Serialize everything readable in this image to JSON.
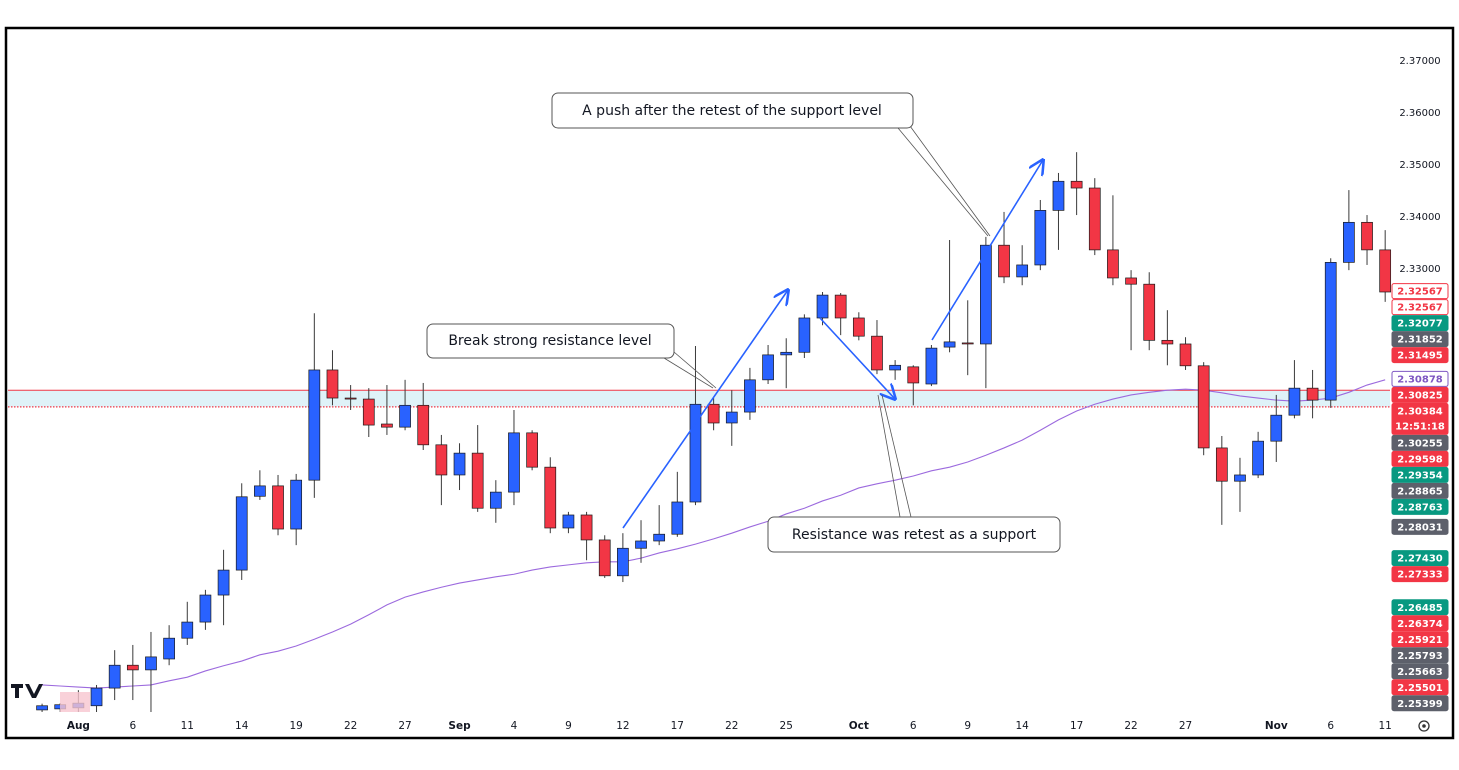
{
  "chart_data": {
    "type": "candlestick",
    "categories": [
      null,
      null,
      "Aug",
      null,
      null,
      "6",
      null,
      null,
      "11",
      null,
      null,
      "14",
      null,
      null,
      "19",
      null,
      null,
      "22",
      null,
      null,
      "27",
      null,
      null,
      "Sep",
      null,
      null,
      "4",
      null,
      null,
      "9",
      null,
      null,
      "12",
      null,
      null,
      "17",
      null,
      null,
      "22",
      null,
      null,
      "25",
      null,
      null,
      null,
      "Oct",
      null,
      null,
      "6",
      null,
      null,
      "9",
      null,
      null,
      "14",
      null,
      null,
      "17",
      null,
      null,
      "22",
      null,
      null,
      "27",
      null,
      null,
      null,
      null,
      "Nov",
      null,
      null,
      "6",
      null,
      null,
      "11"
    ],
    "open": [
      2.2452,
      2.2454,
      2.2456,
      2.246,
      2.2494,
      2.2538,
      2.2529,
      2.255,
      2.259,
      2.2621,
      2.2673,
      2.2721,
      2.2863,
      2.2883,
      2.28,
      2.2894,
      2.3106,
      2.3052,
      2.305,
      2.3002,
      2.2996,
      2.3038,
      2.2962,
      2.2904,
      2.2946,
      2.284,
      2.2871,
      2.2985,
      2.2919,
      2.2802,
      2.2827,
      2.2779,
      2.271,
      2.2763,
      2.2777,
      2.279,
      2.2852,
      2.304,
      2.3004,
      2.3025,
      2.3087,
      2.3135,
      2.314,
      2.3206,
      2.325,
      2.3206,
      2.3171,
      2.3106,
      2.3112,
      2.3079,
      2.315,
      2.3158,
      2.3156,
      2.3346,
      2.3285,
      2.3308,
      2.3413,
      2.3469,
      2.3456,
      2.3337,
      2.3283,
      2.3271,
      2.3163,
      2.3156,
      2.3114,
      2.2956,
      2.2892,
      2.2904,
      2.2969,
      2.3019,
      2.3071,
      2.3048,
      2.3313,
      2.339,
      2.3337
    ],
    "high": [
      2.2464,
      2.2465,
      2.249,
      2.25,
      2.2567,
      2.2577,
      2.2602,
      2.2615,
      2.266,
      2.2683,
      2.276,
      2.2888,
      2.2913,
      2.2904,
      2.2906,
      2.3215,
      2.3144,
      2.3077,
      2.3071,
      2.3077,
      2.3087,
      2.3081,
      2.2981,
      2.2965,
      2.3,
      2.2894,
      2.3029,
      2.299,
      2.2938,
      2.2833,
      2.2833,
      2.2788,
      2.2792,
      2.2817,
      2.2846,
      2.291,
      2.3152,
      2.3052,
      2.3067,
      2.311,
      2.3154,
      2.3167,
      2.3213,
      2.3256,
      2.3254,
      2.3217,
      2.3202,
      2.3125,
      2.3115,
      2.3154,
      2.3356,
      2.324,
      2.3362,
      2.341,
      2.3346,
      2.3433,
      2.3485,
      2.3525,
      2.3475,
      2.3442,
      2.3298,
      2.3294,
      2.3221,
      2.3169,
      2.3121,
      2.2979,
      2.2937,
      2.2987,
      2.3058,
      2.3125,
      2.3106,
      2.3321,
      2.3452,
      2.3404,
      2.3375
    ],
    "low": [
      2.2448,
      2.2448,
      2.2448,
      2.2448,
      2.2471,
      2.2471,
      2.2448,
      2.2538,
      2.2577,
      2.2606,
      2.2615,
      2.2702,
      2.2856,
      2.2788,
      2.2769,
      2.286,
      2.3038,
      2.3029,
      2.2977,
      2.2981,
      2.299,
      2.2952,
      2.2846,
      2.2875,
      2.2833,
      2.2812,
      2.2846,
      2.2913,
      2.2792,
      2.2792,
      2.274,
      2.2706,
      2.2698,
      2.2735,
      2.2769,
      2.2785,
      2.2846,
      2.299,
      2.296,
      2.301,
      2.3079,
      2.3071,
      2.3129,
      2.3192,
      2.3173,
      2.3163,
      2.3098,
      2.3087,
      2.3038,
      2.3075,
      2.314,
      2.3096,
      2.3071,
      2.3273,
      2.3269,
      2.3298,
      2.3337,
      2.3404,
      2.3327,
      2.3269,
      2.3144,
      2.3144,
      2.3115,
      2.3106,
      2.2942,
      2.2808,
      2.2833,
      2.2898,
      2.2929,
      2.3013,
      2.3013,
      2.3033,
      2.3298,
      2.3308,
      2.3237
    ],
    "close": [
      2.246,
      2.2462,
      2.2465,
      2.2494,
      2.2538,
      2.2529,
      2.2554,
      2.259,
      2.2621,
      2.2673,
      2.2721,
      2.2862,
      2.2883,
      2.28,
      2.2894,
      2.3106,
      2.3052,
      2.305,
      2.3,
      2.2996,
      2.3038,
      2.2962,
      2.2904,
      2.2946,
      2.284,
      2.2871,
      2.2985,
      2.2919,
      2.2802,
      2.2827,
      2.2779,
      2.271,
      2.2763,
      2.2777,
      2.279,
      2.2852,
      2.304,
      2.3004,
      2.3025,
      2.3087,
      2.3135,
      2.314,
      2.3206,
      2.325,
      2.3206,
      2.3171,
      2.3106,
      2.3115,
      2.3081,
      2.3148,
      2.316,
      2.3156,
      2.3346,
      2.3285,
      2.3308,
      2.3413,
      2.3469,
      2.3456,
      2.3337,
      2.3283,
      2.3271,
      2.3163,
      2.3156,
      2.3114,
      2.2956,
      2.2892,
      2.2904,
      2.2969,
      2.3019,
      2.3071,
      2.3048,
      2.3313,
      2.339,
      2.3337,
      2.3256
    ],
    "up_color": "#2962ff",
    "down_color": "#f23645",
    "moving_average": {
      "color": "#9c6ade",
      "values": [
        2.25,
        2.2498,
        2.2496,
        2.2494,
        2.2496,
        2.2498,
        2.25,
        2.2508,
        2.2515,
        2.2527,
        2.2537,
        2.2546,
        2.2558,
        2.2565,
        2.2575,
        2.2588,
        2.2602,
        2.2617,
        2.2635,
        2.2654,
        2.2669,
        2.2679,
        2.2688,
        2.2696,
        2.2702,
        2.2708,
        2.2713,
        2.2721,
        2.2727,
        2.2731,
        2.2735,
        2.2737,
        2.2737,
        2.2744,
        2.2754,
        2.2762,
        2.2771,
        2.2781,
        2.2792,
        2.2804,
        2.2815,
        2.2829,
        2.284,
        2.2854,
        2.2865,
        2.2879,
        2.2887,
        2.2894,
        2.2902,
        2.2912,
        2.2919,
        2.2929,
        2.2942,
        2.2956,
        2.2971,
        2.299,
        2.301,
        2.3027,
        2.304,
        2.305,
        2.3058,
        2.3063,
        2.3067,
        2.3069,
        2.3067,
        2.3062,
        2.3056,
        2.3052,
        2.3048,
        2.3046,
        2.3048,
        2.3052,
        2.3063,
        2.3077,
        2.3087
      ]
    },
    "zone": {
      "top": 2.3067,
      "bottom": 2.3035,
      "line_color": "#f23645",
      "fill": "#dff2f8"
    },
    "ylim": [
      2.2448,
      2.376
    ],
    "yticks": [
      {
        "value": 2.37,
        "label": "2.37000"
      },
      {
        "value": 2.36,
        "label": "2.36000"
      },
      {
        "value": 2.35,
        "label": "2.35000"
      },
      {
        "value": 2.34,
        "label": "2.34000"
      },
      {
        "value": 2.33,
        "label": "2.33000"
      }
    ],
    "grid": false,
    "price_labels": [
      {
        "value": 2.32567,
        "color": "#f23645",
        "outline": true
      },
      {
        "value": 2.32567,
        "color": "#f23645",
        "outline": true
      },
      {
        "value": 2.32077,
        "color": "#089981"
      },
      {
        "value": 2.31852,
        "color": "#5d606b"
      },
      {
        "value": 2.31495,
        "color": "#f23645"
      },
      {
        "value": 2.30878,
        "color": "#7e57c2",
        "outline": true
      },
      {
        "value": 2.30825,
        "color": "#f23645"
      },
      {
        "value": 2.30384,
        "color": "#f23645",
        "sublabel": "12:51:18"
      },
      {
        "value": 2.30255,
        "color": "#5d606b"
      },
      {
        "value": 2.29598,
        "color": "#f23645"
      },
      {
        "value": 2.29354,
        "color": "#089981"
      },
      {
        "value": 2.28865,
        "color": "#5d606b"
      },
      {
        "value": 2.28763,
        "color": "#089981"
      },
      {
        "value": 2.28031,
        "color": "#5d606b"
      },
      {
        "value": 2.2743,
        "label": "2.27430",
        "color": "#089981"
      },
      {
        "value": 2.27333,
        "color": "#f23645"
      },
      {
        "value": 2.26485,
        "color": "#089981"
      },
      {
        "value": 2.26374,
        "color": "#f23645"
      },
      {
        "value": 2.25921,
        "color": "#f23645"
      },
      {
        "value": 2.25793,
        "color": "#5d606b"
      },
      {
        "value": 2.25663,
        "color": "#5d606b"
      },
      {
        "value": 2.25501,
        "color": "#f23645"
      },
      {
        "value": 2.25399,
        "color": "#5d606b"
      }
    ],
    "annotations": [
      "A push after the retest of the support level",
      "Break strong resistance level",
      "Resistance was retest as a support"
    ]
  }
}
